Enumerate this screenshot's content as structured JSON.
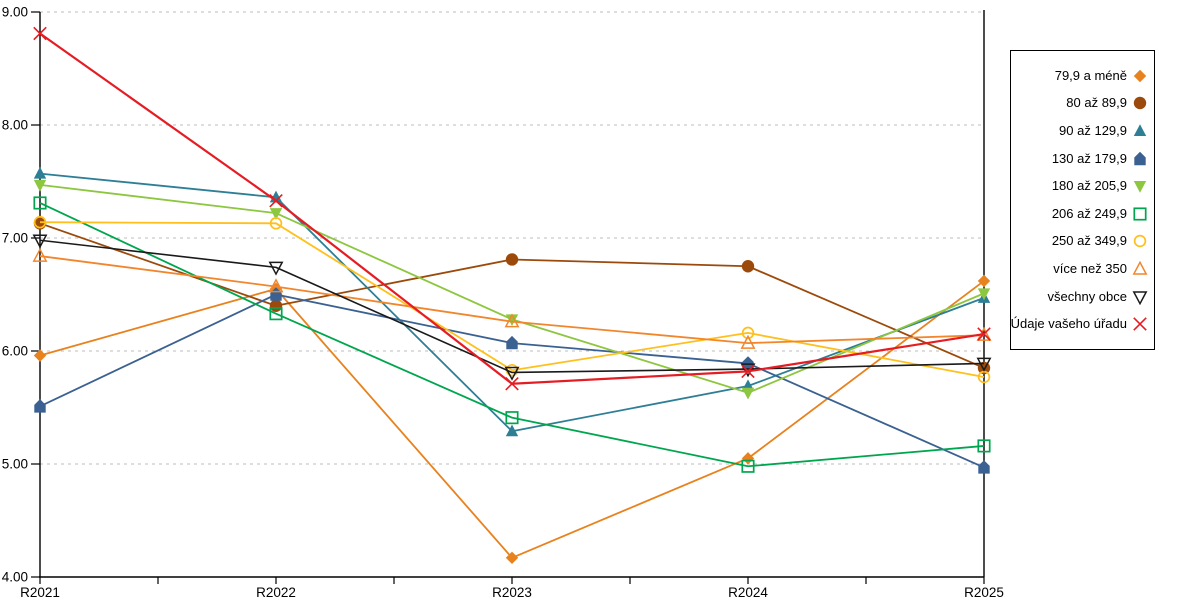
{
  "chart_data": {
    "type": "line",
    "title": "",
    "xlabel": "",
    "ylabel": "",
    "x_categories": [
      "R2021",
      "R2022",
      "R2023",
      "R2024",
      "R2025"
    ],
    "y_tick_labels": [
      "4.00",
      "5.00",
      "6.00",
      "7.00",
      "8.00",
      "9.00"
    ],
    "ylim": [
      4,
      9
    ],
    "grid": "horizontal-dashed",
    "grid_color": "#bdbdbd",
    "axis_color": "#000000",
    "legend_position": "right-outside",
    "series": [
      {
        "name": "79,9 a méně",
        "marker": "diamond",
        "color": "#e8821e",
        "line_width": 1.8,
        "values": [
          5.96,
          6.55,
          4.17,
          5.05,
          6.62
        ]
      },
      {
        "name": "80 až 89,9",
        "marker": "circle",
        "color": "#9c4a0b",
        "line_width": 1.8,
        "values": [
          7.13,
          6.4,
          6.81,
          6.75,
          5.85
        ]
      },
      {
        "name": "90 až 129,9",
        "marker": "triangle-up",
        "color": "#2e7f96",
        "line_width": 1.8,
        "values": [
          7.57,
          7.36,
          5.29,
          5.69,
          6.47
        ]
      },
      {
        "name": "130 až 179,9",
        "marker": "pentagon",
        "color": "#3a6191",
        "line_width": 1.8,
        "values": [
          5.51,
          6.5,
          6.07,
          5.89,
          4.97
        ]
      },
      {
        "name": "180 až 205,9",
        "marker": "triangle-down",
        "color": "#8dc63f",
        "line_width": 1.8,
        "values": [
          7.47,
          7.22,
          6.28,
          5.63,
          6.51
        ]
      },
      {
        "name": "206 až 249,9",
        "marker": "square-open",
        "color": "#00a64f",
        "line_width": 1.8,
        "values": [
          7.31,
          6.33,
          5.41,
          4.98,
          5.16
        ]
      },
      {
        "name": "250 až 349,9",
        "marker": "circle-open",
        "color": "#ffc01d",
        "line_width": 1.8,
        "values": [
          7.14,
          7.13,
          5.83,
          6.16,
          5.77
        ]
      },
      {
        "name": "více než 350",
        "marker": "triangle-up-open",
        "color": "#f2862c",
        "line_width": 1.8,
        "values": [
          6.84,
          6.57,
          6.26,
          6.07,
          6.14
        ]
      },
      {
        "name": "všechny obce",
        "marker": "triangle-down-open",
        "color": "#1a1a1a",
        "line_width": 1.6,
        "values": [
          6.98,
          6.74,
          5.81,
          5.84,
          5.89
        ]
      },
      {
        "name": "Údaje vašeho úřadu",
        "marker": "x",
        "color": "#e51c23",
        "line_width": 2.2,
        "values": [
          8.81,
          7.33,
          5.71,
          5.82,
          6.15
        ]
      }
    ]
  }
}
